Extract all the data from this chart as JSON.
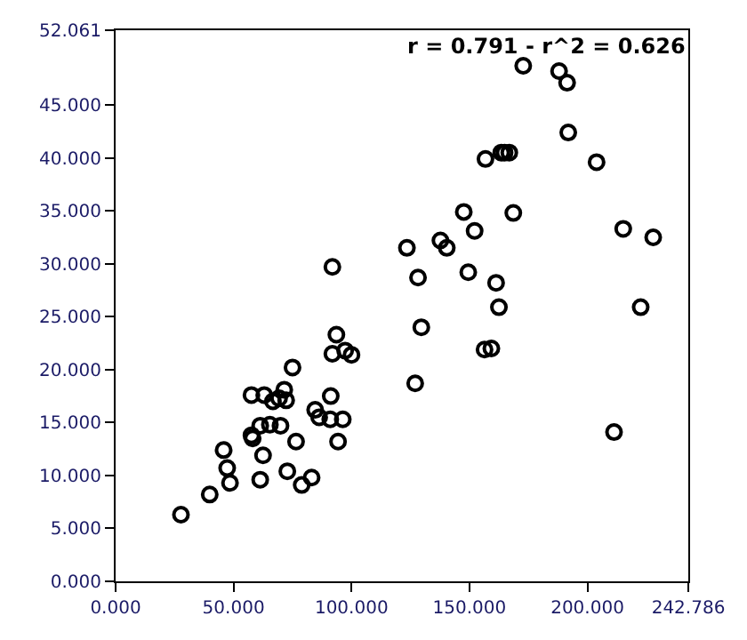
{
  "chart_data": {
    "type": "scatter",
    "marker": "circle",
    "annotations": [
      "r = 0.791 - r^2 = 0.626"
    ],
    "xlim": [
      0,
      242.786
    ],
    "ylim": [
      0,
      52.061
    ],
    "xticks": [
      {
        "value": 0,
        "label": "0.000"
      },
      {
        "value": 50,
        "label": "50.000"
      },
      {
        "value": 100,
        "label": "100.000"
      },
      {
        "value": 150,
        "label": "150.000"
      },
      {
        "value": 200,
        "label": "200.000"
      },
      {
        "value": 242.786,
        "label": "242.786"
      }
    ],
    "yticks": [
      {
        "value": 0,
        "label": "0.000"
      },
      {
        "value": 5,
        "label": "5.000"
      },
      {
        "value": 10,
        "label": "10.000"
      },
      {
        "value": 15,
        "label": "15.000"
      },
      {
        "value": 20,
        "label": "20.000"
      },
      {
        "value": 25,
        "label": "25.000"
      },
      {
        "value": 30,
        "label": "30.000"
      },
      {
        "value": 35,
        "label": "35.000"
      },
      {
        "value": 40,
        "label": "40.000"
      },
      {
        "value": 45,
        "label": "45.000"
      },
      {
        "value": 52.061,
        "label": "52.061"
      }
    ],
    "series": [
      {
        "color": "#000000",
        "x": [
          27.7,
          39.9,
          48.5,
          47.3,
          45.8,
          61.3,
          62.5,
          58.1,
          57.6,
          61.3,
          65.4,
          69.9,
          57.6,
          63.0,
          66.7,
          69.3,
          72.3,
          71.5,
          75.0,
          72.8,
          76.5,
          78.9,
          83.1,
          84.6,
          86.3,
          91.0,
          96.3,
          94.3,
          91.2,
          93.6,
          91.9,
          97.3,
          100.0,
          91.9,
          123.5,
          128.2,
          127.0,
          129.6,
          137.7,
          140.4,
          147.6,
          152.2,
          149.5,
          156.4,
          159.3,
          161.3,
          162.5,
          168.6,
          156.8,
          163.5,
          164.9,
          166.9,
          172.8,
          188.0,
          191.4,
          191.9,
          203.9,
          215.2,
          227.9,
          222.6,
          211.3
        ],
        "values": [
          6.3,
          8.2,
          9.3,
          10.7,
          12.4,
          9.6,
          11.9,
          13.5,
          13.8,
          14.7,
          14.8,
          14.7,
          17.6,
          17.6,
          17.0,
          17.3,
          17.1,
          18.1,
          20.2,
          10.4,
          13.2,
          9.1,
          9.8,
          16.2,
          15.5,
          15.3,
          15.3,
          13.2,
          17.5,
          23.3,
          21.5,
          21.8,
          21.4,
          29.7,
          31.5,
          28.7,
          18.7,
          24.0,
          32.2,
          31.5,
          34.9,
          33.1,
          29.2,
          21.9,
          22.0,
          28.2,
          25.9,
          34.8,
          39.9,
          40.5,
          40.5,
          40.5,
          48.7,
          48.2,
          47.1,
          42.4,
          39.6,
          33.3,
          32.5,
          25.9,
          14.1
        ]
      }
    ]
  }
}
